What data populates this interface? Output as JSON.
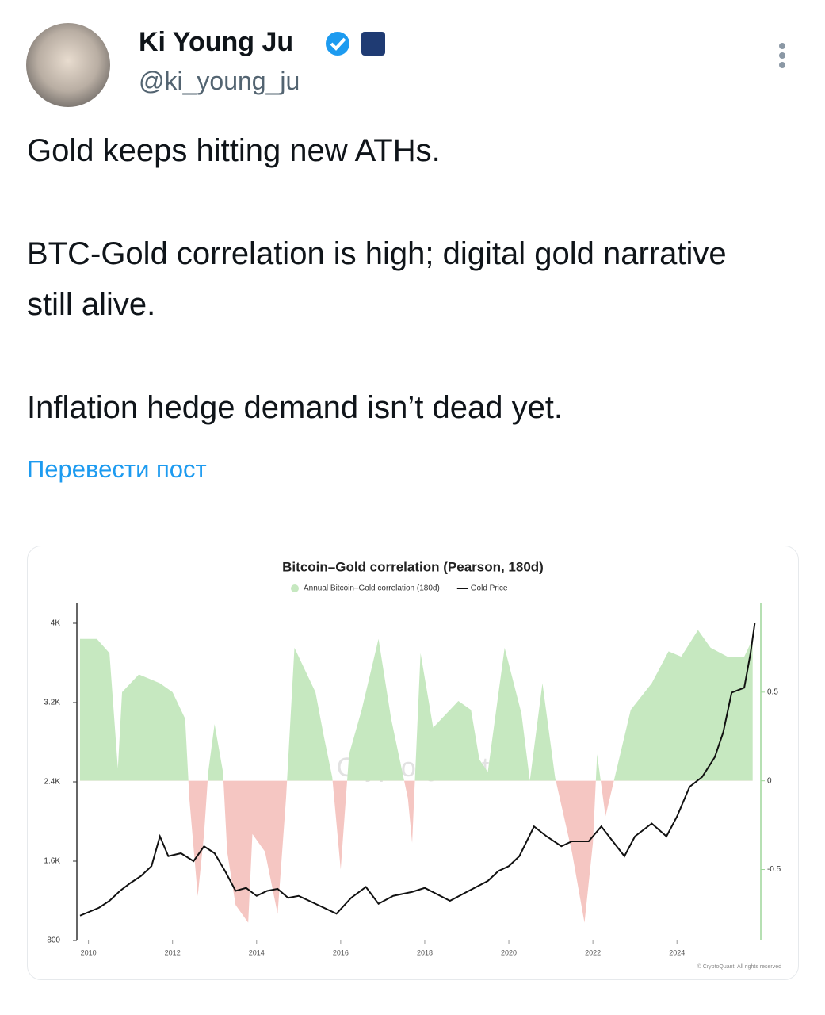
{
  "header": {
    "name": "Ki Young Ju",
    "handle": "@ki_young_ju"
  },
  "post": {
    "paragraphs": [
      "Gold keeps hitting new ATHs.",
      "BTC-Gold correlation is high; digital gold narrative still alive.",
      "Inflation hedge demand isn’t dead yet."
    ],
    "translate": "Перевести пост"
  },
  "chart_data": {
    "type": "line",
    "title": "Bitcoin–Gold correlation (Pearson, 180d)",
    "watermark": "CryptoQuant",
    "footer": "© CryptoQuant. All rights reserved",
    "xlim": [
      2009.8,
      2025.9
    ],
    "xticks": [
      2010,
      2012,
      2014,
      2016,
      2018,
      2020,
      2022,
      2024
    ],
    "ylim": [
      800,
      4200
    ],
    "yticks": [
      800,
      {
        "value": 1600,
        "label": "1.6K"
      },
      {
        "value": 2400,
        "label": "2.4K"
      },
      {
        "value": 3200,
        "label": "3.2K"
      },
      {
        "value": 4000,
        "label": "4K"
      }
    ],
    "y2lim": [
      -0.9,
      1.0
    ],
    "y2ticks": [
      -0.5,
      0,
      0.5
    ],
    "series": [
      {
        "name": "Annual Bitcoin–Gold correlation (180d)",
        "axis": "y2",
        "type": "area",
        "color": "#c6e8c0",
        "negative_color": "#f5c6c2",
        "x": [
          2009.8,
          2010.2,
          2010.5,
          2010.7,
          2010.8,
          2011.2,
          2011.7,
          2012.0,
          2012.3,
          2012.4,
          2012.6,
          2012.75,
          2012.85,
          2013.0,
          2013.2,
          2013.3,
          2013.5,
          2013.8,
          2013.9,
          2014.2,
          2014.5,
          2014.7,
          2014.9,
          2015.4,
          2015.6,
          2015.8,
          2016.0,
          2016.2,
          2016.5,
          2016.9,
          2017.2,
          2017.6,
          2017.7,
          2017.9,
          2018.2,
          2018.4,
          2018.8,
          2019.1,
          2019.3,
          2019.5,
          2019.9,
          2020.3,
          2020.5,
          2020.8,
          2021.1,
          2021.5,
          2021.8,
          2022.0,
          2022.1,
          2022.3,
          2022.5,
          2022.9,
          2023.4,
          2023.8,
          2024.1,
          2024.5,
          2024.8,
          2025.2,
          2025.6,
          2025.8
        ],
        "values": [
          0.8,
          0.8,
          0.72,
          0.07,
          0.5,
          0.6,
          0.55,
          0.5,
          0.35,
          -0.1,
          -0.65,
          -0.3,
          0.05,
          0.32,
          0.05,
          -0.4,
          -0.7,
          -0.8,
          -0.3,
          -0.4,
          -0.75,
          -0.1,
          0.75,
          0.5,
          0.25,
          0.02,
          -0.5,
          0.15,
          0.4,
          0.8,
          0.35,
          -0.1,
          -0.35,
          0.72,
          0.3,
          0.35,
          0.45,
          0.4,
          0.12,
          0.05,
          0.75,
          0.38,
          0.0,
          0.55,
          0.02,
          -0.4,
          -0.8,
          -0.35,
          0.15,
          -0.2,
          0.0,
          0.4,
          0.55,
          0.73,
          0.7,
          0.85,
          0.75,
          0.7,
          0.7,
          0.8
        ]
      },
      {
        "name": "Gold Price",
        "axis": "y",
        "type": "line",
        "color": "#111111",
        "x": [
          2009.8,
          2010.25,
          2010.5,
          2010.75,
          2011.0,
          2011.25,
          2011.5,
          2011.7,
          2011.9,
          2012.2,
          2012.5,
          2012.75,
          2013.0,
          2013.25,
          2013.5,
          2013.75,
          2014.0,
          2014.25,
          2014.5,
          2014.75,
          2015.0,
          2015.25,
          2015.5,
          2015.9,
          2016.25,
          2016.6,
          2016.9,
          2017.25,
          2017.7,
          2018.0,
          2018.6,
          2019.0,
          2019.5,
          2019.75,
          2020.0,
          2020.25,
          2020.6,
          2020.9,
          2021.25,
          2021.5,
          2021.9,
          2022.2,
          2022.75,
          2023.0,
          2023.4,
          2023.75,
          2024.0,
          2024.3,
          2024.6,
          2024.9,
          2025.1,
          2025.3,
          2025.6,
          2025.75,
          2025.85
        ],
        "values": [
          1050,
          1130,
          1200,
          1300,
          1380,
          1450,
          1550,
          1850,
          1650,
          1680,
          1600,
          1750,
          1680,
          1500,
          1300,
          1330,
          1250,
          1300,
          1320,
          1230,
          1250,
          1200,
          1150,
          1070,
          1230,
          1340,
          1170,
          1250,
          1290,
          1330,
          1200,
          1290,
          1400,
          1500,
          1550,
          1650,
          1950,
          1850,
          1750,
          1800,
          1800,
          1950,
          1650,
          1850,
          1980,
          1850,
          2050,
          2350,
          2450,
          2650,
          2900,
          3300,
          3350,
          3700,
          4000
        ]
      }
    ]
  }
}
